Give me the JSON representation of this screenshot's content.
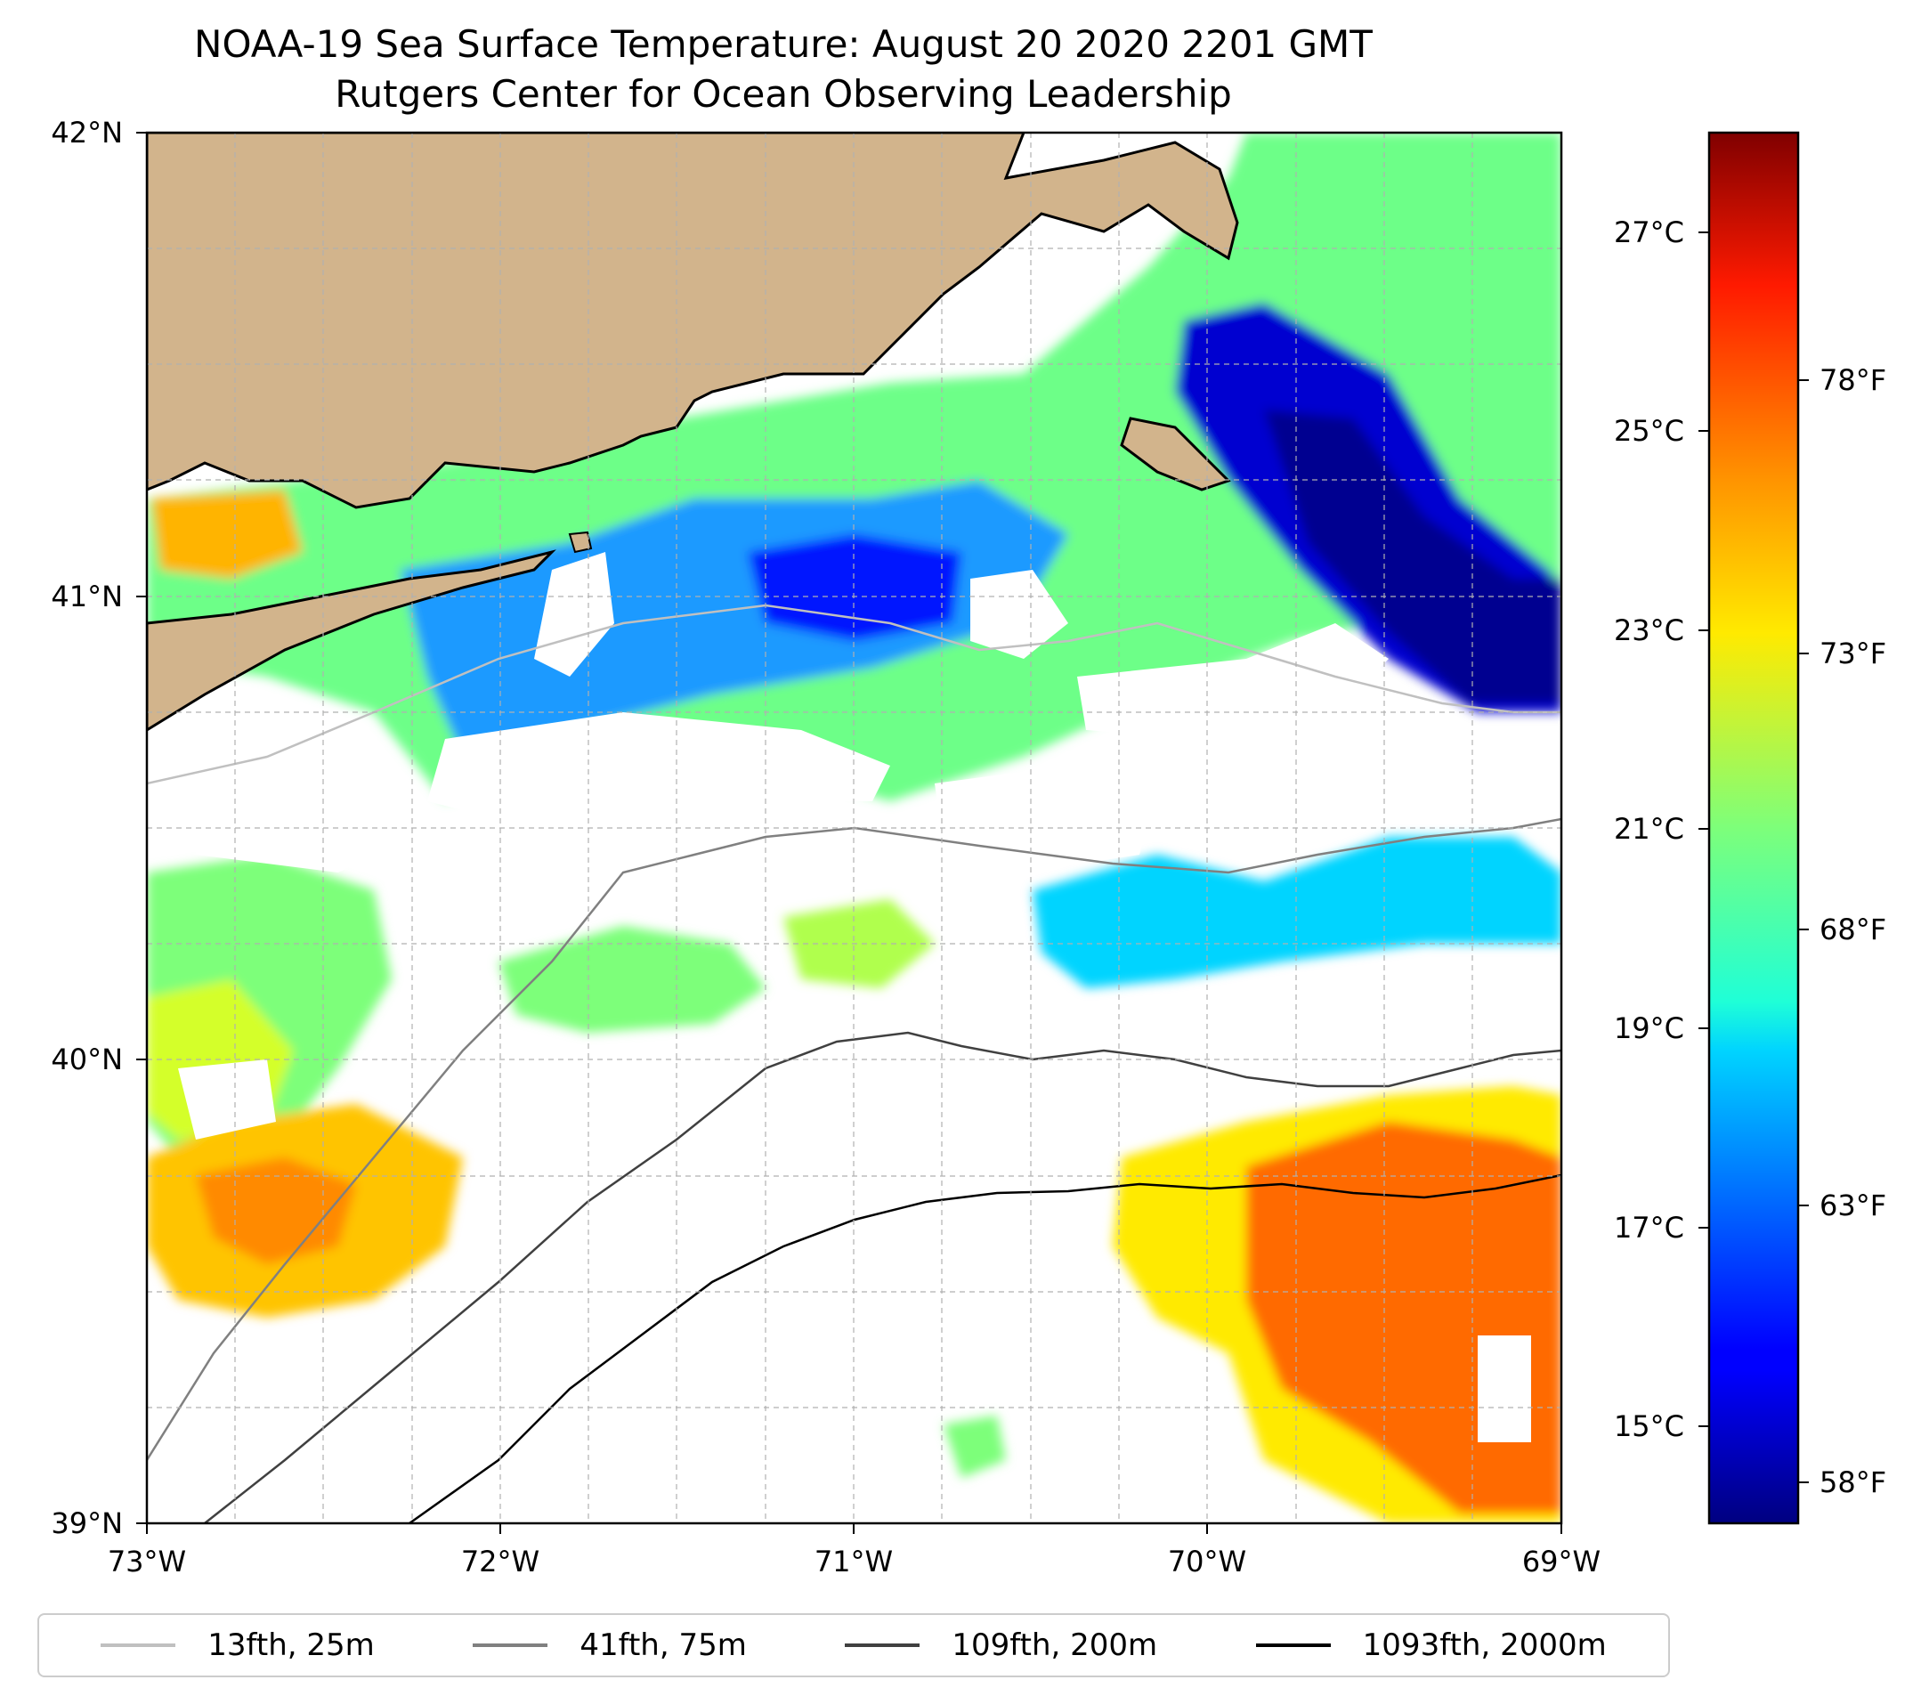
{
  "title": {
    "line1": "NOAA-19 Sea Surface Temperature: August 20 2020 2201 GMT",
    "line2": "Rutgers Center for Ocean Observing Leadership"
  },
  "map": {
    "lon_range": [
      -73,
      -69
    ],
    "lat_range": [
      39,
      42
    ],
    "lon_ticks": [
      "73°W",
      "72°W",
      "71°W",
      "70°W",
      "69°W"
    ],
    "lat_ticks": [
      "42°N",
      "41°N",
      "40°N",
      "39°N"
    ],
    "grid": true,
    "colors": {
      "land": "#d2b48c",
      "coast": "#000000",
      "grid": "#b0b0b0"
    }
  },
  "colorbar": {
    "colormap": "jet",
    "celsius_range": [
      14.2,
      28.0
    ],
    "celsius_ticks": [
      "27°C",
      "25°C",
      "23°C",
      "21°C",
      "19°C",
      "17°C",
      "15°C"
    ],
    "fahrenheit_ticks": [
      "78°F",
      "73°F",
      "68°F",
      "63°F",
      "58°F"
    ]
  },
  "legend": {
    "items": [
      {
        "label": "13fth, 25m",
        "color": "#c0c0c0"
      },
      {
        "label": "41fth, 75m",
        "color": "#808080"
      },
      {
        "label": "109fth, 200m",
        "color": "#404040"
      },
      {
        "label": "1093fth, 2000m",
        "color": "#000000"
      }
    ]
  }
}
